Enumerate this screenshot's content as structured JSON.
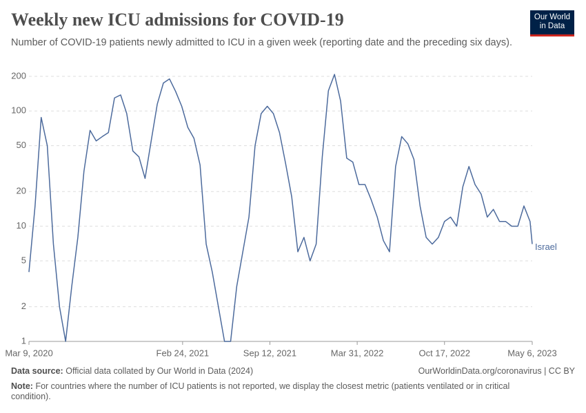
{
  "title": "Weekly new ICU admissions for COVID-19",
  "subtitle": "Number of COVID-19 patients newly admitted to ICU in a given week (reporting date and the preceding six days).",
  "logo": {
    "line1": "Our World",
    "line2": "in Data"
  },
  "source_label": "Data source:",
  "source": "Official data collated by Our World in Data (2024)",
  "url": "OurWorldinData.org/coronavirus | CC BY",
  "note_label": "Note:",
  "note": "For countries where the number of ICU patients is not reported, we display the closest metric (patients ventilated or in critical condition).",
  "chart_data": {
    "type": "line",
    "yscale": "log",
    "grid": true,
    "xlim": [
      "2020-03-09",
      "2023-05-06"
    ],
    "ylim": [
      1,
      220
    ],
    "yticks": [
      1,
      2,
      5,
      10,
      20,
      50,
      100,
      200
    ],
    "xticks": [
      {
        "value": "2020-03-09",
        "label": "Mar 9, 2020"
      },
      {
        "value": "2021-02-24",
        "label": "Feb 24, 2021"
      },
      {
        "value": "2021-09-12",
        "label": "Sep 12, 2021"
      },
      {
        "value": "2022-03-31",
        "label": "Mar 31, 2022"
      },
      {
        "value": "2022-10-17",
        "label": "Oct 17, 2022"
      },
      {
        "value": "2023-05-06",
        "label": "May 6, 2023"
      }
    ],
    "x": [
      "2020-03-09",
      "2020-03-23",
      "2020-04-06",
      "2020-04-20",
      "2020-05-04",
      "2020-05-18",
      "2020-06-01",
      "2020-06-15",
      "2020-06-29",
      "2020-07-13",
      "2020-07-27",
      "2020-08-10",
      "2020-08-24",
      "2020-09-07",
      "2020-09-21",
      "2020-10-05",
      "2020-10-19",
      "2020-11-02",
      "2020-11-16",
      "2020-11-30",
      "2020-12-14",
      "2020-12-28",
      "2021-01-11",
      "2021-01-25",
      "2021-02-08",
      "2021-02-22",
      "2021-03-08",
      "2021-03-22",
      "2021-04-05",
      "2021-04-19",
      "2021-05-03",
      "2021-05-17",
      "2021-05-31",
      "2021-06-14",
      "2021-06-28",
      "2021-07-12",
      "2021-07-26",
      "2021-08-09",
      "2021-08-23",
      "2021-09-06",
      "2021-09-20",
      "2021-10-04",
      "2021-10-18",
      "2021-11-01",
      "2021-11-15",
      "2021-11-29",
      "2021-12-13",
      "2021-12-27",
      "2022-01-10",
      "2022-01-24",
      "2022-02-07",
      "2022-02-21",
      "2022-03-07",
      "2022-03-21",
      "2022-04-04",
      "2022-04-18",
      "2022-05-02",
      "2022-05-16",
      "2022-05-30",
      "2022-06-13",
      "2022-06-27",
      "2022-07-11",
      "2022-07-25",
      "2022-08-08",
      "2022-08-22",
      "2022-09-05",
      "2022-09-19",
      "2022-10-03",
      "2022-10-17",
      "2022-10-31",
      "2022-11-14",
      "2022-11-28",
      "2022-12-12",
      "2022-12-26",
      "2023-01-09",
      "2023-01-23",
      "2023-02-06",
      "2023-02-20",
      "2023-03-06",
      "2023-03-20",
      "2023-04-03",
      "2023-04-17",
      "2023-05-01",
      "2023-05-06"
    ],
    "series": [
      {
        "name": "Israel",
        "color": "#4c6a9c",
        "values": [
          4,
          15,
          88,
          50,
          7,
          2,
          1,
          3,
          8,
          30,
          68,
          55,
          60,
          65,
          130,
          138,
          95,
          45,
          40,
          26,
          55,
          115,
          175,
          190,
          148,
          110,
          72,
          58,
          34,
          7,
          4,
          2,
          1,
          1,
          3,
          6,
          12,
          50,
          95,
          110,
          95,
          65,
          35,
          18,
          6,
          8,
          5,
          7,
          40,
          150,
          208,
          122,
          39,
          36,
          23,
          23,
          17,
          12,
          7.5,
          6,
          33,
          60,
          52,
          38,
          15,
          8,
          7,
          8,
          11,
          12,
          10,
          22,
          33,
          23,
          19,
          12,
          14,
          11,
          11,
          10,
          10,
          15,
          11,
          7
        ]
      }
    ]
  }
}
